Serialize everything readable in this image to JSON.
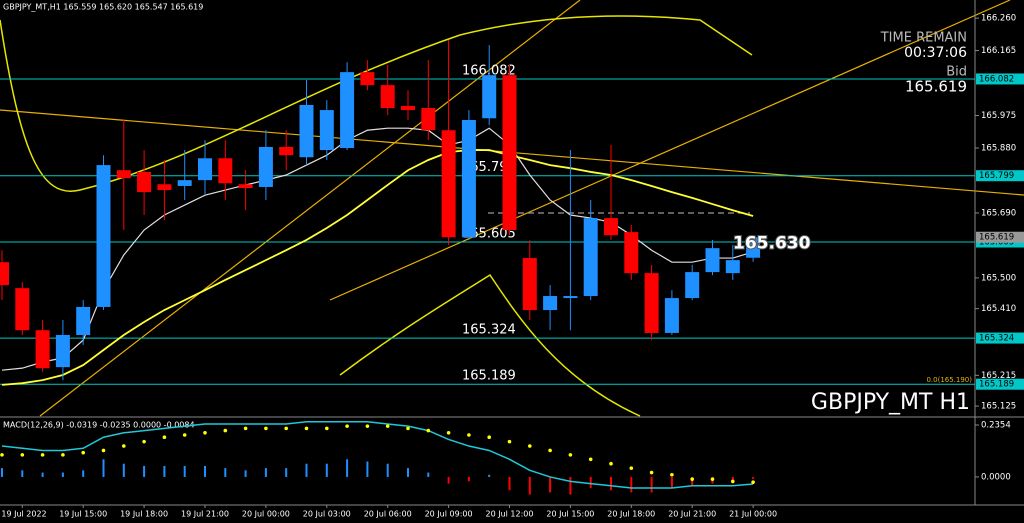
{
  "chart_data": [
    {
      "type": "candlestick",
      "title": "GBPJPY_MT,H1  165.559 165.620 165.547 165.619",
      "categories": [
        null,
        "19 Jul 2022",
        null,
        null,
        "19 Jul 15:00",
        null,
        null,
        "19 Jul 18:00",
        null,
        null,
        "19 Jul 21:00",
        null,
        null,
        "20 Jul 00:00",
        null,
        null,
        "20 Jul 03:00",
        null,
        null,
        "20 Jul 06:00",
        null,
        null,
        "20 Jul 09:00",
        null,
        null,
        "20 Jul 12:00",
        null,
        null,
        "20 Jul 15:00",
        null,
        null,
        "20 Jul 18:00",
        null,
        null,
        "20 Jul 21:00",
        null,
        null,
        "21 Jul 00:00"
      ],
      "open": [
        165.546,
        165.47,
        165.347,
        165.239,
        165.333,
        165.415,
        165.815,
        165.81,
        165.774,
        165.769,
        165.786,
        165.85,
        165.774,
        165.766,
        165.883,
        165.853,
        165.874,
        165.88,
        166.102,
        166.064,
        166.003,
        165.997,
        165.932,
        165.619,
        165.967,
        166.093,
        165.558,
        165.406,
        165.441,
        165.447,
        165.675,
        165.634,
        165.514,
        165.339,
        165.441,
        165.517,
        165.514,
        165.559
      ],
      "high": [
        165.581,
        165.488,
        165.377,
        165.377,
        165.435,
        165.859,
        165.962,
        165.874,
        165.845,
        165.874,
        165.903,
        165.903,
        165.815,
        165.932,
        165.932,
        166.079,
        166.02,
        166.131,
        166.137,
        166.123,
        166.049,
        166.137,
        166.196,
        165.991,
        166.181,
        166.123,
        165.611,
        165.479,
        165.874,
        165.728,
        165.889,
        165.655,
        165.538,
        165.464,
        165.538,
        165.611,
        165.596,
        165.62
      ],
      "low": [
        165.435,
        165.333,
        165.225,
        165.201,
        165.304,
        165.406,
        165.64,
        165.684,
        165.669,
        165.728,
        165.742,
        165.728,
        165.698,
        165.728,
        165.815,
        165.83,
        165.845,
        165.874,
        166.049,
        165.976,
        165.962,
        165.903,
        165.596,
        165.611,
        165.947,
        165.625,
        165.377,
        165.347,
        165.347,
        165.435,
        165.611,
        165.494,
        165.318,
        165.333,
        165.435,
        165.508,
        165.494,
        165.547
      ],
      "close": [
        165.479,
        165.347,
        165.236,
        165.333,
        165.415,
        165.83,
        165.792,
        165.751,
        165.757,
        165.786,
        165.85,
        165.777,
        165.763,
        165.883,
        165.859,
        166.006,
        165.991,
        166.102,
        166.064,
        165.997,
        165.991,
        165.932,
        165.619,
        165.962,
        166.093,
        165.64,
        165.406,
        165.447,
        165.447,
        165.675,
        165.625,
        165.514,
        165.339,
        165.441,
        165.517,
        165.587,
        165.552,
        165.619
      ],
      "up_color": "#1e90ff",
      "down_color": "#ff0000",
      "lines": [
        {
          "color": "#e6dede",
          "values": [
            165.23,
            165.236,
            165.254,
            165.266,
            165.318,
            165.464,
            165.567,
            165.64,
            165.684,
            165.713,
            165.742,
            165.757,
            165.772,
            165.786,
            165.801,
            165.83,
            165.859,
            165.903,
            165.932,
            165.938,
            165.938,
            165.932,
            165.889,
            165.903,
            165.938,
            165.889,
            165.801,
            165.728,
            165.684,
            165.675,
            165.663,
            165.625,
            165.581,
            165.546,
            165.546,
            165.558,
            165.558,
            165.576
          ]
        },
        {
          "color": "#ffff33",
          "values": [
            165.187,
            165.192,
            165.201,
            165.216,
            165.245,
            165.289,
            165.333,
            165.371,
            165.406,
            165.435,
            165.464,
            165.494,
            165.523,
            165.552,
            165.581,
            165.611,
            165.646,
            165.684,
            165.728,
            165.772,
            165.815,
            165.845,
            165.868,
            165.874,
            165.874,
            165.859,
            165.845,
            165.83,
            165.821,
            165.81,
            165.801,
            165.786,
            165.769,
            165.751,
            165.734,
            165.716,
            165.698,
            165.681
          ]
        }
      ],
      "ylim": [
        165.096,
        166.313
      ],
      "yticks": [
        {
          "value": 166.26,
          "label": "166.260"
        },
        166.165,
        165.975,
        {
          "value": 165.88,
          "label": "165.880"
        },
        {
          "value": 165.69,
          "label": "165.690"
        },
        {
          "value": 165.5,
          "label": "165.500"
        },
        {
          "value": 165.41,
          "label": "165.410"
        },
        165.215,
        165.125
      ],
      "levels": [
        166.082,
        165.799,
        165.605,
        165.324,
        165.189
      ],
      "level_color": "#00c8c8",
      "bid_label": "Bid",
      "bid": 165.619,
      "last_price": {
        "value": 165.63,
        "label": "165.630"
      },
      "time_remain_label": "TIME REMAIN",
      "time_remain": "00:37:06",
      "fib_label": "0.0(165.190)",
      "symbol_label": "GBPJPY_MT H1"
    },
    {
      "type": "macd",
      "title": "MACD(12,26,9) -0.0319 -0.0235 0.0000 -0.0084",
      "histogram": [
        0.04,
        0.03,
        0.02,
        0.02,
        0.03,
        0.08,
        0.06,
        0.05,
        0.05,
        0.05,
        0.05,
        0.04,
        0.03,
        0.04,
        0.04,
        0.06,
        0.06,
        0.08,
        0.07,
        0.06,
        0.04,
        0.02,
        -0.03,
        -0.02,
        0.01,
        -0.06,
        -0.08,
        -0.07,
        -0.08,
        -0.05,
        -0.06,
        -0.07,
        -0.07,
        -0.05,
        -0.04,
        -0.03,
        -0.03,
        -0.0084
      ],
      "signal": [
        0.1,
        0.1,
        0.1,
        0.1,
        0.11,
        0.12,
        0.14,
        0.16,
        0.18,
        0.19,
        0.2,
        0.21,
        0.22,
        0.22,
        0.22,
        0.22,
        0.22,
        0.23,
        0.23,
        0.23,
        0.22,
        0.21,
        0.2,
        0.19,
        0.18,
        0.16,
        0.14,
        0.12,
        0.1,
        0.08,
        0.06,
        0.04,
        0.02,
        0.01,
        -0.01,
        -0.01,
        -0.02,
        -0.0235
      ],
      "macd_line": [
        0.14,
        0.13,
        0.12,
        0.12,
        0.13,
        0.18,
        0.2,
        0.21,
        0.22,
        0.23,
        0.24,
        0.24,
        0.24,
        0.24,
        0.24,
        0.25,
        0.25,
        0.25,
        0.25,
        0.24,
        0.23,
        0.21,
        0.17,
        0.14,
        0.12,
        0.08,
        0.03,
        0,
        -0.02,
        -0.03,
        -0.04,
        -0.05,
        -0.05,
        -0.05,
        -0.04,
        -0.04,
        -0.04,
        -0.0319
      ],
      "pos_color": "#1e90ff",
      "neg_color": "#ff0000",
      "signal_color": "#ffff00",
      "line_color": "#20c8d8",
      "ylim": [
        -0.127,
        0.267
      ],
      "yticks": [
        0.2354,
        {
          "value": 0,
          "label": "0.0000"
        }
      ]
    }
  ]
}
